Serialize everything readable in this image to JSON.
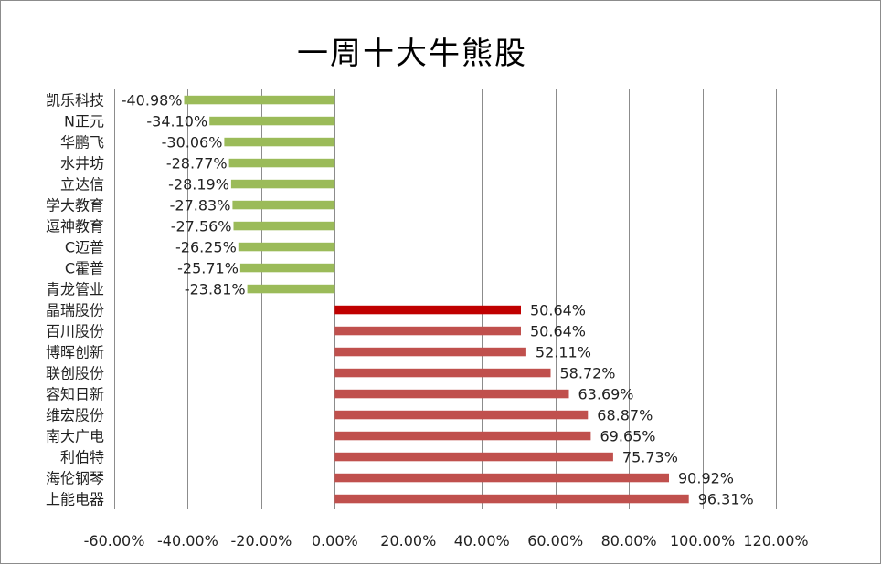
{
  "chart_data": {
    "type": "bar",
    "orientation": "horizontal",
    "title": "一周十大牛熊股",
    "categories": [
      "凯乐科技",
      "N正元",
      "华鹏飞",
      "水井坊",
      "立达信",
      "学大教育",
      "逗神教育",
      "C迈普",
      "C霍普",
      "青龙管业",
      "晶瑞股份",
      "百川股份",
      "博晖创新",
      "联创股份",
      "容知日新",
      "维宏股份",
      "南大广电",
      "利伯特",
      "海伦钢琴",
      "上能电器"
    ],
    "values": [
      -40.98,
      -34.1,
      -30.06,
      -28.77,
      -28.19,
      -27.83,
      -27.56,
      -26.25,
      -25.71,
      -23.81,
      50.64,
      50.64,
      52.11,
      58.72,
      63.69,
      68.87,
      69.65,
      75.73,
      90.92,
      96.31
    ],
    "value_labels": [
      "-40.98%",
      "-34.10%",
      "-30.06%",
      "-28.77%",
      "-28.19%",
      "-27.83%",
      "-27.56%",
      "-26.25%",
      "-25.71%",
      "-23.81%",
      "50.64%",
      "50.64%",
      "52.11%",
      "58.72%",
      "63.69%",
      "68.87%",
      "69.65%",
      "75.73%",
      "90.92%",
      "96.31%"
    ],
    "xlim": [
      -60,
      120
    ],
    "xticks": [
      -60,
      -40,
      -20,
      0,
      20,
      40,
      60,
      80,
      100,
      120
    ],
    "xtick_labels": [
      "-60.00%",
      "-40.00%",
      "-20.00%",
      "0.00%",
      "20.00%",
      "40.00%",
      "60.00%",
      "80.00%",
      "100.00%",
      "120.00%"
    ],
    "grid": "vertical",
    "colors": {
      "negative": "#9bbb59",
      "positive": "#c0504d",
      "highlight": "#c00000"
    },
    "highlight_index": 10
  }
}
